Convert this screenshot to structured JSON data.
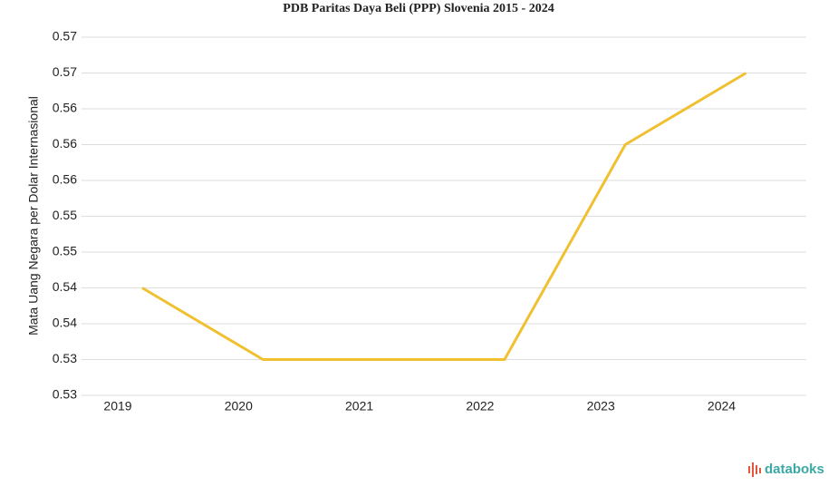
{
  "chart_data": {
    "type": "line",
    "title": "PDB Paritas Daya Beli (PPP) Slovenia 2015 - 2024",
    "y_label": "Mata Uang Negara per Dolar Internasional",
    "categories": [
      "2019",
      "2020",
      "2021",
      "2022",
      "2023",
      "2024"
    ],
    "series": [
      {
        "name": "PPP",
        "color": "#f0c030",
        "values": [
          0.54,
          0.53,
          0.53,
          0.53,
          0.56,
          0.57
        ]
      }
    ],
    "ylim": [
      0.525,
      0.575
    ],
    "yticks": [
      {
        "value": 0.525,
        "label": "0.53"
      },
      {
        "value": 0.53,
        "label": "0.53"
      },
      {
        "value": 0.535,
        "label": "0.54"
      },
      {
        "value": 0.54,
        "label": "0.54"
      },
      {
        "value": 0.545,
        "label": "0.55"
      },
      {
        "value": 0.55,
        "label": "0.55"
      },
      {
        "value": 0.555,
        "label": "0.56"
      },
      {
        "value": 0.56,
        "label": "0.56"
      },
      {
        "value": 0.565,
        "label": "0.56"
      },
      {
        "value": 0.57,
        "label": "0.57"
      },
      {
        "value": 0.575,
        "label": "0.57"
      }
    ],
    "grid": true,
    "watermark": "databoks"
  }
}
